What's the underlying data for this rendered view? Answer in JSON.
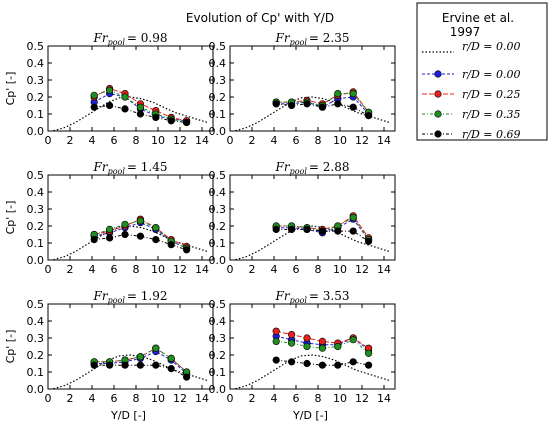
{
  "figure_title": "Evolution of Cp' with Y/D",
  "legend": {
    "reference_title_lines": [
      "Ervine et al.",
      "1997"
    ],
    "reference_label": "r/D = 0.00",
    "entries": [
      {
        "label": "r/D = 0.00",
        "color": "#1f1fdd"
      },
      {
        "label": "r/D = 0.25",
        "color": "#e8201d"
      },
      {
        "label": "r/D = 0.35",
        "color": "#1f8f1f"
      },
      {
        "label": "r/D = 0.69",
        "color": "#000000"
      }
    ]
  },
  "colors": {
    "series": [
      "#1f1fdd",
      "#e8201d",
      "#1f8f1f",
      "#000000"
    ],
    "reference": "#000000"
  },
  "chart_data": [
    {
      "type": "line",
      "title_var": "Fr",
      "title_sub": "pool",
      "title_value": "= 0.98",
      "xlabel": "",
      "ylabel": "Cp' [-]",
      "xlim": [
        0,
        15
      ],
      "ylim": [
        0,
        0.5
      ],
      "xticks": [
        "0",
        "2",
        "4",
        "6",
        "8",
        "10",
        "12",
        "14"
      ],
      "yticks": [
        "0.0",
        "0.1",
        "0.2",
        "0.3",
        "0.4",
        "0.5"
      ],
      "reference": {
        "x": [
          0.5,
          1.5,
          2.5,
          3.5,
          4.5,
          5.5,
          6.5,
          7.5,
          8.5,
          9.5,
          10.5,
          11.5,
          12.5,
          13.5,
          14.5
        ],
        "y": [
          0.002,
          0.02,
          0.05,
          0.09,
          0.13,
          0.17,
          0.195,
          0.2,
          0.19,
          0.17,
          0.14,
          0.11,
          0.09,
          0.07,
          0.05
        ]
      },
      "x": [
        4.2,
        5.6,
        7.0,
        8.4,
        9.8,
        11.2,
        12.6
      ],
      "series": [
        {
          "name": "r/D = 0.00",
          "values": [
            0.17,
            0.22,
            0.2,
            0.13,
            0.09,
            0.07,
            0.06
          ]
        },
        {
          "name": "r/D = 0.25",
          "values": [
            0.2,
            0.25,
            0.22,
            0.16,
            0.12,
            0.08,
            0.06
          ]
        },
        {
          "name": "r/D = 0.35",
          "values": [
            0.21,
            0.24,
            0.2,
            0.14,
            0.1,
            0.07,
            0.05
          ]
        },
        {
          "name": "r/D = 0.69",
          "values": [
            0.14,
            0.15,
            0.13,
            0.1,
            0.08,
            0.06,
            0.05
          ]
        }
      ]
    },
    {
      "type": "line",
      "title_var": "Fr",
      "title_sub": "pool",
      "title_value": "= 2.35",
      "xlabel": "",
      "ylabel": "",
      "xlim": [
        0,
        15
      ],
      "ylim": [
        0,
        0.5
      ],
      "xticks": [
        "0",
        "2",
        "4",
        "6",
        "8",
        "10",
        "12",
        "14"
      ],
      "yticks": [
        "0.0",
        "0.1",
        "0.2",
        "0.3",
        "0.4",
        "0.5"
      ],
      "reference": {
        "x": [
          0.5,
          1.5,
          2.5,
          3.5,
          4.5,
          5.5,
          6.5,
          7.5,
          8.5,
          9.5,
          10.5,
          11.5,
          12.5,
          13.5,
          14.5
        ],
        "y": [
          0.002,
          0.02,
          0.05,
          0.09,
          0.13,
          0.17,
          0.195,
          0.2,
          0.19,
          0.17,
          0.14,
          0.11,
          0.09,
          0.07,
          0.05
        ]
      },
      "x": [
        4.2,
        5.6,
        7.0,
        8.4,
        9.8,
        11.2,
        12.6
      ],
      "series": [
        {
          "name": "r/D = 0.00",
          "values": [
            0.16,
            0.16,
            0.17,
            0.14,
            0.19,
            0.2,
            0.1
          ]
        },
        {
          "name": "r/D = 0.25",
          "values": [
            0.17,
            0.17,
            0.18,
            0.16,
            0.21,
            0.23,
            0.11
          ]
        },
        {
          "name": "r/D = 0.35",
          "values": [
            0.17,
            0.17,
            0.17,
            0.15,
            0.22,
            0.22,
            0.11
          ]
        },
        {
          "name": "r/D = 0.69",
          "values": [
            0.16,
            0.15,
            0.16,
            0.14,
            0.16,
            0.14,
            0.09
          ]
        }
      ]
    },
    {
      "type": "line",
      "title_var": "Fr",
      "title_sub": "pool",
      "title_value": "= 1.45",
      "xlabel": "",
      "ylabel": "Cp' [-]",
      "xlim": [
        0,
        15
      ],
      "ylim": [
        0,
        0.5
      ],
      "xticks": [
        "0",
        "2",
        "4",
        "6",
        "8",
        "10",
        "12",
        "14"
      ],
      "yticks": [
        "0.0",
        "0.1",
        "0.2",
        "0.3",
        "0.4",
        "0.5"
      ],
      "reference": {
        "x": [
          0.5,
          1.5,
          2.5,
          3.5,
          4.5,
          5.5,
          6.5,
          7.5,
          8.5,
          9.5,
          10.5,
          11.5,
          12.5,
          13.5,
          14.5
        ],
        "y": [
          0.002,
          0.02,
          0.05,
          0.09,
          0.13,
          0.17,
          0.195,
          0.2,
          0.19,
          0.17,
          0.14,
          0.11,
          0.09,
          0.07,
          0.05
        ]
      },
      "x": [
        4.2,
        5.6,
        7.0,
        8.4,
        9.8,
        11.2,
        12.6
      ],
      "series": [
        {
          "name": "r/D = 0.00",
          "values": [
            0.14,
            0.16,
            0.19,
            0.22,
            0.18,
            0.11,
            0.07
          ]
        },
        {
          "name": "r/D = 0.25",
          "values": [
            0.15,
            0.17,
            0.2,
            0.24,
            0.19,
            0.12,
            0.08
          ]
        },
        {
          "name": "r/D = 0.35",
          "values": [
            0.15,
            0.18,
            0.21,
            0.23,
            0.19,
            0.11,
            0.07
          ]
        },
        {
          "name": "r/D = 0.69",
          "values": [
            0.12,
            0.13,
            0.15,
            0.14,
            0.12,
            0.09,
            0.06
          ]
        }
      ]
    },
    {
      "type": "line",
      "title_var": "Fr",
      "title_sub": "pool",
      "title_value": "= 2.88",
      "xlabel": "",
      "ylabel": "",
      "xlim": [
        0,
        15
      ],
      "ylim": [
        0,
        0.5
      ],
      "xticks": [
        "0",
        "2",
        "4",
        "6",
        "8",
        "10",
        "12",
        "14"
      ],
      "yticks": [
        "0.0",
        "0.1",
        "0.2",
        "0.3",
        "0.4",
        "0.5"
      ],
      "reference": {
        "x": [
          0.5,
          1.5,
          2.5,
          3.5,
          4.5,
          5.5,
          6.5,
          7.5,
          8.5,
          9.5,
          10.5,
          11.5,
          12.5,
          13.5,
          14.5
        ],
        "y": [
          0.002,
          0.02,
          0.05,
          0.09,
          0.13,
          0.17,
          0.195,
          0.2,
          0.19,
          0.17,
          0.14,
          0.11,
          0.09,
          0.07,
          0.05
        ]
      },
      "x": [
        4.2,
        5.6,
        7.0,
        8.4,
        9.8,
        11.2,
        12.6
      ],
      "series": [
        {
          "name": "r/D = 0.00",
          "values": [
            0.19,
            0.19,
            0.18,
            0.16,
            0.19,
            0.24,
            0.12
          ]
        },
        {
          "name": "r/D = 0.25",
          "values": [
            0.2,
            0.2,
            0.19,
            0.18,
            0.2,
            0.26,
            0.13
          ]
        },
        {
          "name": "r/D = 0.35",
          "values": [
            0.2,
            0.2,
            0.19,
            0.17,
            0.2,
            0.25,
            0.12
          ]
        },
        {
          "name": "r/D = 0.69",
          "values": [
            0.18,
            0.18,
            0.18,
            0.17,
            0.17,
            0.17,
            0.11
          ]
        }
      ]
    },
    {
      "type": "line",
      "title_var": "Fr",
      "title_sub": "pool",
      "title_value": "= 1.92",
      "xlabel": "Y/D [-]",
      "ylabel": "Cp' [-]",
      "xlim": [
        0,
        15
      ],
      "ylim": [
        0,
        0.5
      ],
      "xticks": [
        "0",
        "2",
        "4",
        "6",
        "8",
        "10",
        "12",
        "14"
      ],
      "yticks": [
        "0.0",
        "0.1",
        "0.2",
        "0.3",
        "0.4",
        "0.5"
      ],
      "reference": {
        "x": [
          0.5,
          1.5,
          2.5,
          3.5,
          4.5,
          5.5,
          6.5,
          7.5,
          8.5,
          9.5,
          10.5,
          11.5,
          12.5,
          13.5,
          14.5
        ],
        "y": [
          0.002,
          0.02,
          0.05,
          0.09,
          0.13,
          0.17,
          0.195,
          0.2,
          0.19,
          0.17,
          0.14,
          0.11,
          0.09,
          0.07,
          0.05
        ]
      },
      "x": [
        4.2,
        5.6,
        7.0,
        8.4,
        9.8,
        11.2,
        12.6
      ],
      "series": [
        {
          "name": "r/D = 0.00",
          "values": [
            0.15,
            0.15,
            0.16,
            0.18,
            0.22,
            0.17,
            0.09
          ]
        },
        {
          "name": "r/D = 0.25",
          "values": [
            0.16,
            0.16,
            0.17,
            0.19,
            0.24,
            0.18,
            0.1
          ]
        },
        {
          "name": "r/D = 0.35",
          "values": [
            0.16,
            0.16,
            0.17,
            0.19,
            0.24,
            0.18,
            0.1
          ]
        },
        {
          "name": "r/D = 0.69",
          "values": [
            0.14,
            0.14,
            0.14,
            0.14,
            0.14,
            0.12,
            0.07
          ]
        }
      ]
    },
    {
      "type": "line",
      "title_var": "Fr",
      "title_sub": "pool",
      "title_value": "= 3.53",
      "xlabel": "Y/D [-]",
      "ylabel": "",
      "xlim": [
        0,
        15
      ],
      "ylim": [
        0,
        0.5
      ],
      "xticks": [
        "0",
        "2",
        "4",
        "6",
        "8",
        "10",
        "12",
        "14"
      ],
      "yticks": [
        "0.0",
        "0.1",
        "0.2",
        "0.3",
        "0.4",
        "0.5"
      ],
      "reference": {
        "x": [
          0.5,
          1.5,
          2.5,
          3.5,
          4.5,
          5.5,
          6.5,
          7.5,
          8.5,
          9.5,
          10.5,
          11.5,
          12.5,
          13.5,
          14.5
        ],
        "y": [
          0.002,
          0.02,
          0.05,
          0.09,
          0.13,
          0.17,
          0.195,
          0.2,
          0.19,
          0.17,
          0.14,
          0.11,
          0.09,
          0.07,
          0.05
        ]
      },
      "x": [
        4.2,
        5.6,
        7.0,
        8.4,
        9.8,
        11.2,
        12.6
      ],
      "series": [
        {
          "name": "r/D = 0.00",
          "values": [
            0.31,
            0.29,
            0.27,
            0.26,
            0.26,
            0.3,
            0.23
          ]
        },
        {
          "name": "r/D = 0.25",
          "values": [
            0.34,
            0.32,
            0.3,
            0.28,
            0.27,
            0.3,
            0.24
          ]
        },
        {
          "name": "r/D = 0.35",
          "values": [
            0.28,
            0.27,
            0.25,
            0.24,
            0.25,
            0.29,
            0.21
          ]
        },
        {
          "name": "r/D = 0.69",
          "values": [
            0.17,
            0.16,
            0.15,
            0.14,
            0.14,
            0.16,
            0.14
          ]
        }
      ]
    }
  ]
}
